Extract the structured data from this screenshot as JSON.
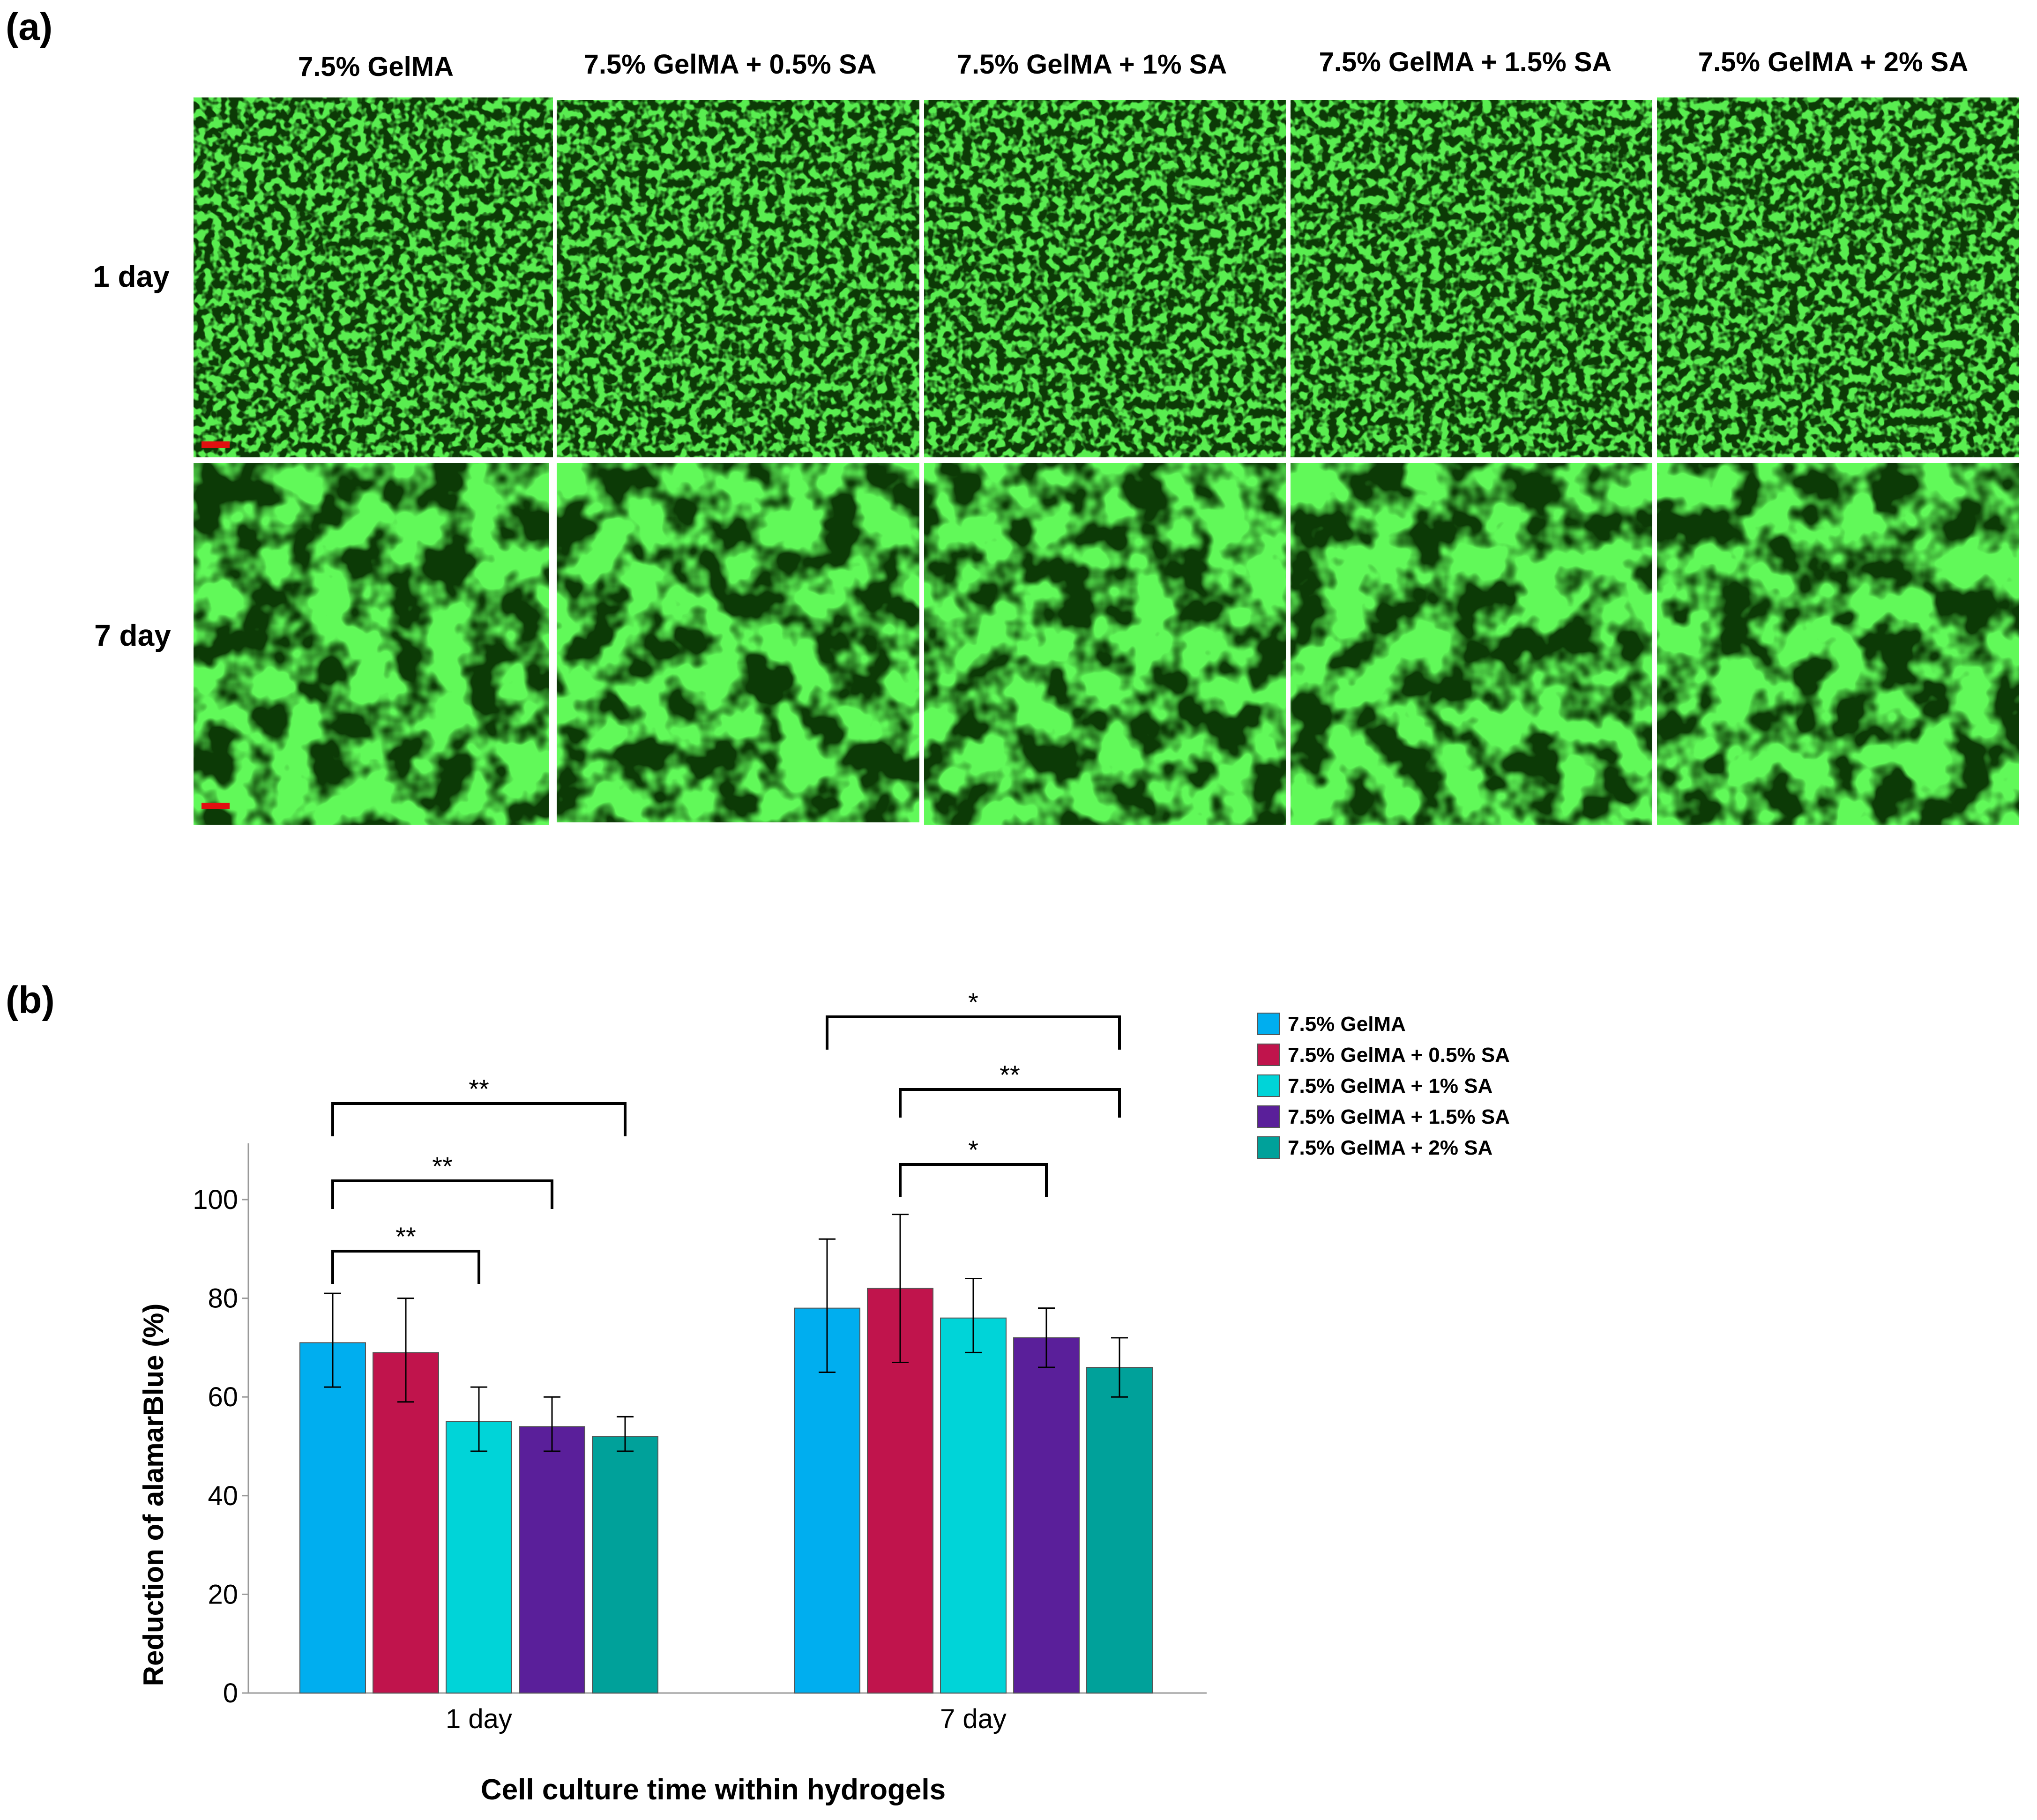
{
  "panel_a": {
    "label": "(a)",
    "columns": [
      "7.5% GelMA",
      "7.5% GelMA + 0.5% SA",
      "7.5% GelMA + 1% SA",
      "7.5% GelMA + 1.5% SA",
      "7.5% GelMA + 2% SA"
    ],
    "rows": [
      "1 day",
      "7 day"
    ],
    "colors": {
      "live": "#22e622",
      "dead": "#e23a1e",
      "background": "#0c3a06",
      "scale_bar": "#e01010"
    }
  },
  "panel_b": {
    "label": "(b)"
  },
  "chart_data": {
    "type": "bar",
    "xlabel": "Cell culture time within hydrogels",
    "ylabel": "Reduction of alamarBlue (%)",
    "ylim": [
      0,
      110
    ],
    "yticks": [
      0,
      20,
      40,
      60,
      80,
      100
    ],
    "categories": [
      "1 day",
      "7 day"
    ],
    "grid": false,
    "legend_position": "right",
    "series": [
      {
        "name": "7.5% GelMA",
        "color": "#00aeef",
        "values": [
          71,
          78
        ],
        "error": [
          [
            62,
            81
          ],
          [
            65,
            92
          ]
        ]
      },
      {
        "name": "7.5% GelMA + 0.5% SA",
        "color": "#c0144c",
        "values": [
          69,
          82
        ],
        "error": [
          [
            59,
            80
          ],
          [
            67,
            97
          ]
        ]
      },
      {
        "name": "7.5% GelMA + 1% SA",
        "color": "#00d4d8",
        "values": [
          55,
          76
        ],
        "error": [
          [
            49,
            62
          ],
          [
            69,
            84
          ]
        ]
      },
      {
        "name": "7.5% GelMA + 1.5% SA",
        "color": "#5a1f9a",
        "values": [
          54,
          72
        ],
        "error": [
          [
            49,
            60
          ],
          [
            66,
            78
          ]
        ]
      },
      {
        "name": "7.5% GelMA + 2% SA",
        "color": "#00a19a",
        "values": [
          52,
          66
        ],
        "error": [
          [
            49,
            56
          ],
          [
            60,
            72
          ]
        ]
      }
    ],
    "significance": [
      {
        "category": "1 day",
        "from": 0,
        "to": 2,
        "label": "**"
      },
      {
        "category": "1 day",
        "from": 0,
        "to": 3,
        "label": "**"
      },
      {
        "category": "1 day",
        "from": 0,
        "to": 4,
        "label": "**"
      },
      {
        "category": "7 day",
        "from": 1,
        "to": 3,
        "label": "*"
      },
      {
        "category": "7 day",
        "from": 1,
        "to": 4,
        "label": "**"
      },
      {
        "category": "7 day",
        "from": 0,
        "to": 4,
        "label": "*"
      }
    ]
  }
}
